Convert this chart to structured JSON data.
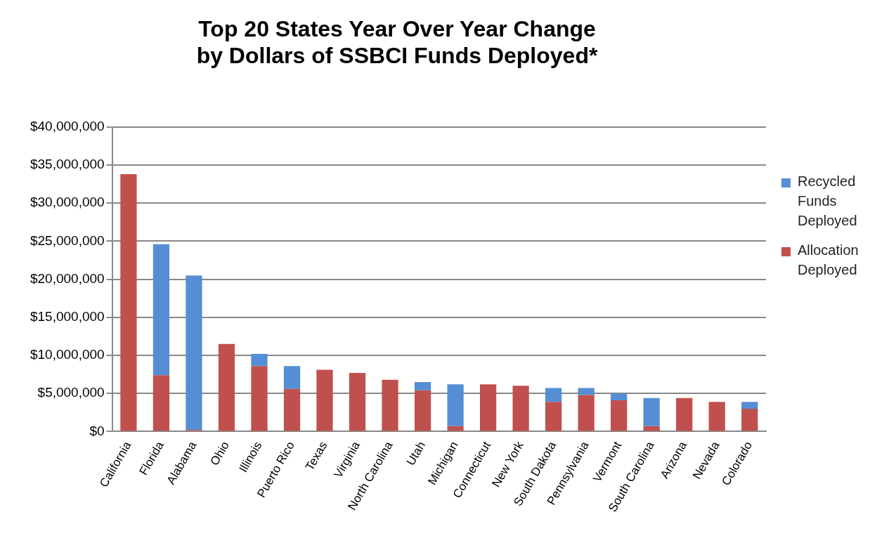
{
  "chart_data": {
    "type": "bar",
    "title": "Top 20 States Year Over Year Change\nby Dollars of SSBCI Funds Deployed*",
    "categories": [
      "California",
      "Florida",
      "Alabama",
      "Ohio",
      "Illinois",
      "Puerto Rico",
      "Texas",
      "Virginia",
      "North Carolina",
      "Utah",
      "Michigan",
      "Connecticut",
      "New York",
      "South Dakota",
      "Pennsylvania",
      "Vermont",
      "South Carolina",
      "Arizona",
      "Nevada",
      "Colorado"
    ],
    "stacked": true,
    "series": [
      {
        "name": "Allocation Deployed",
        "color": "#c0504d",
        "values": [
          33800000,
          7400000,
          200000,
          11500000,
          8600000,
          5600000,
          8100000,
          7700000,
          6800000,
          5400000,
          700000,
          6200000,
          6000000,
          3900000,
          4800000,
          4100000,
          700000,
          4400000,
          3900000,
          3000000
        ]
      },
      {
        "name": "Recycled Funds Deployed",
        "color": "#558ed5",
        "values": [
          0,
          17200000,
          20300000,
          0,
          1600000,
          3000000,
          0,
          0,
          0,
          1100000,
          5500000,
          0,
          0,
          1800000,
          900000,
          900000,
          3700000,
          0,
          0,
          900000
        ]
      }
    ],
    "ylim": [
      0,
      40000000
    ],
    "yticks": [
      {
        "value": 0,
        "label": "$0"
      },
      {
        "value": 5000000,
        "label": "$5,000,000"
      },
      {
        "value": 10000000,
        "label": "$10,000,000"
      },
      {
        "value": 15000000,
        "label": "$15,000,000"
      },
      {
        "value": 20000000,
        "label": "$20,000,000"
      },
      {
        "value": 25000000,
        "label": "$25,000,000"
      },
      {
        "value": 30000000,
        "label": "$30,000,000"
      },
      {
        "value": 35000000,
        "label": "$35,000,000"
      },
      {
        "value": 40000000,
        "label": "$40,000,000"
      }
    ],
    "grid": "y",
    "legend": "right"
  }
}
